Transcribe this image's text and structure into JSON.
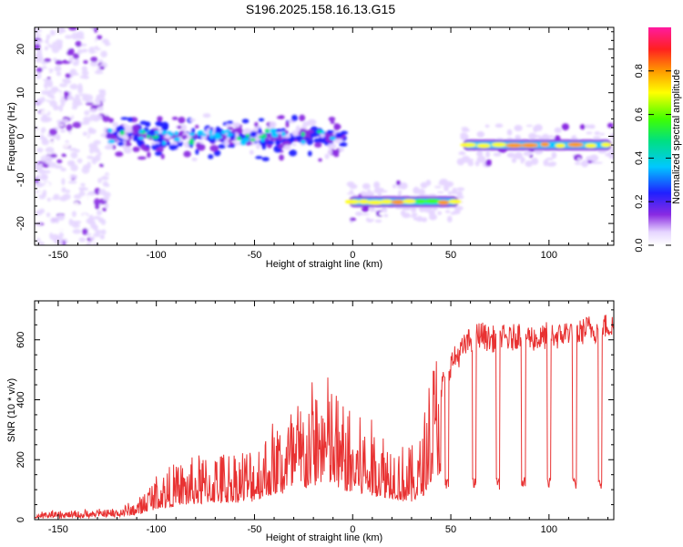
{
  "title": "S196.2025.158.16.13.G15",
  "colors": {
    "snr_line": "#e83232",
    "axis": "#000000",
    "background": "#ffffff"
  },
  "chart_data": [
    {
      "type": "heatmap",
      "name": "spectrogram",
      "xlabel": "Height of straight line (km)",
      "ylabel": "Frequency (Hz)",
      "xlim": [
        -162,
        133
      ],
      "ylim": [
        -25,
        25
      ],
      "x_ticks": [
        -150,
        -100,
        -50,
        0,
        50,
        100
      ],
      "y_ticks": [
        -20,
        -10,
        0,
        10,
        20
      ],
      "colorbar": {
        "label": "Normalized spectral amplitude",
        "range": [
          0,
          1
        ],
        "ticks": [
          0.0,
          0.2,
          0.4,
          0.6,
          0.8
        ],
        "colormap": "rainbow (violet-blue-cyan-green-yellow-orange-red-magenta)"
      },
      "segments": [
        {
          "x": [
            -162,
            -125
          ],
          "freq": 0,
          "amplitude": 0.1,
          "spread": "broad noise"
        },
        {
          "x": [
            -125,
            -3
          ],
          "freq": 0,
          "amplitude": 0.25,
          "spread": "narrow band, noisy"
        },
        {
          "x": [
            -3,
            55
          ],
          "freq": -15,
          "amplitude": 0.7
        },
        {
          "x": [
            55,
            133
          ],
          "freq": -2,
          "amplitude": 0.75
        }
      ]
    },
    {
      "type": "line",
      "name": "snr",
      "xlabel": "Height of straight line (km)",
      "ylabel": "SNR (10 * v/v)",
      "xlim": [
        -162,
        133
      ],
      "ylim": [
        0,
        730
      ],
      "x_ticks": [
        -150,
        -100,
        -50,
        0,
        50,
        100
      ],
      "y_ticks": [
        0,
        200,
        400,
        600
      ],
      "series": [
        {
          "x": [
            -162,
            -150,
            -140,
            -130,
            -120,
            -110,
            -105,
            -100,
            -95,
            -90,
            -85,
            -80,
            -75,
            -70,
            -65,
            -60,
            -55,
            -50,
            -45,
            -40,
            -35,
            -30,
            -25,
            -20,
            -15,
            -10,
            -5,
            0,
            5,
            10,
            15,
            20,
            25,
            30,
            35,
            40,
            45,
            50,
            55,
            60,
            65,
            70,
            75,
            80,
            85,
            90,
            95,
            100,
            105,
            110,
            115,
            120,
            125,
            130,
            133
          ],
          "y": [
            18,
            20,
            22,
            25,
            30,
            45,
            80,
            110,
            120,
            130,
            140,
            150,
            155,
            160,
            165,
            170,
            175,
            180,
            210,
            240,
            250,
            280,
            290,
            330,
            360,
            320,
            280,
            250,
            240,
            230,
            220,
            200,
            180,
            170,
            200,
            380,
            440,
            520,
            560,
            600,
            620,
            600,
            610,
            600,
            620,
            610,
            600,
            620,
            610,
            630,
            620,
            640,
            630,
            650,
            640
          ]
        }
      ]
    }
  ]
}
